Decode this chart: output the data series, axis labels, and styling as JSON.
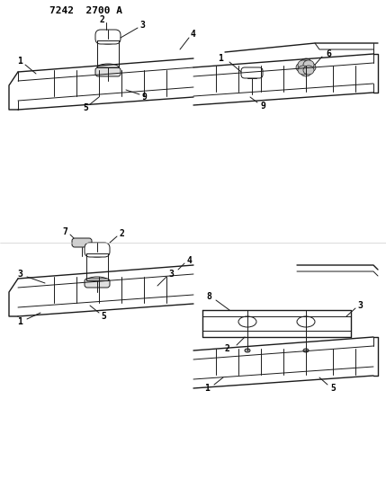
{
  "title": "7242  2700 A",
  "background": "#ffffff",
  "line_color": "#1a1a1a",
  "text_color": "#000000",
  "fig_width": 4.29,
  "fig_height": 5.33,
  "dpi": 100
}
